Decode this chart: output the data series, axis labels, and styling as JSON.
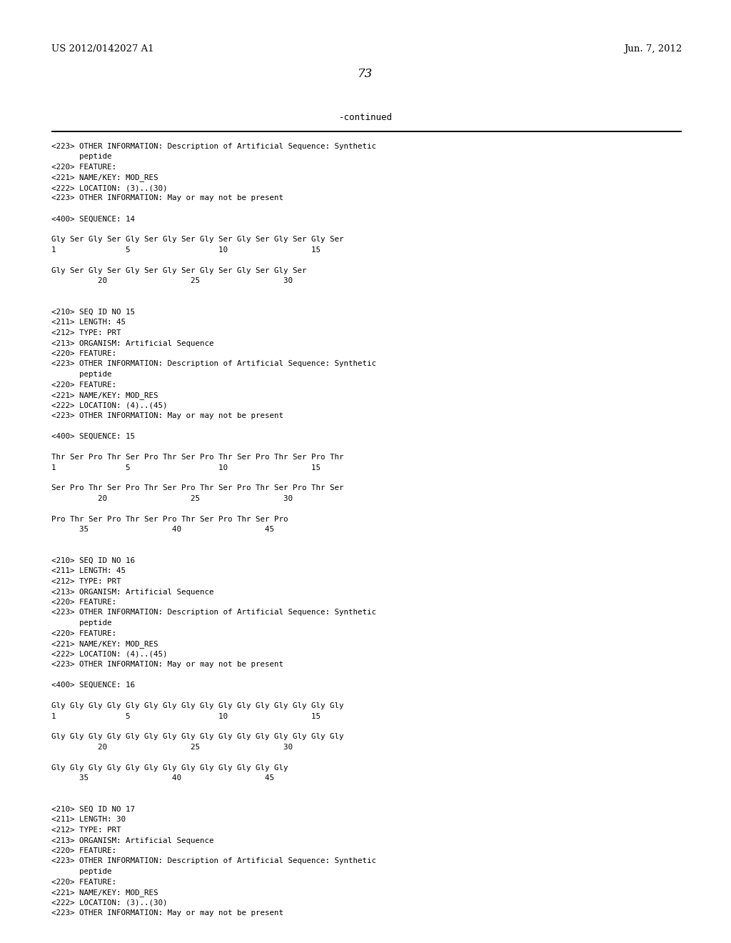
{
  "header_left": "US 2012/0142027 A1",
  "header_right": "Jun. 7, 2012",
  "page_number": "73",
  "continued_label": "-continued",
  "background_color": "#ffffff",
  "text_color": "#000000",
  "font_size": 7.8,
  "header_font_size": 9.5,
  "page_num_font_size": 12,
  "continued_font_size": 9,
  "lines": [
    "<223> OTHER INFORMATION: Description of Artificial Sequence: Synthetic",
    "      peptide",
    "<220> FEATURE:",
    "<221> NAME/KEY: MOD_RES",
    "<222> LOCATION: (3)..(30)",
    "<223> OTHER INFORMATION: May or may not be present",
    "",
    "<400> SEQUENCE: 14",
    "",
    "Gly Ser Gly Ser Gly Ser Gly Ser Gly Ser Gly Ser Gly Ser Gly Ser",
    "1               5                   10                  15",
    "",
    "Gly Ser Gly Ser Gly Ser Gly Ser Gly Ser Gly Ser Gly Ser",
    "          20                  25                  30",
    "",
    "",
    "<210> SEQ ID NO 15",
    "<211> LENGTH: 45",
    "<212> TYPE: PRT",
    "<213> ORGANISM: Artificial Sequence",
    "<220> FEATURE:",
    "<223> OTHER INFORMATION: Description of Artificial Sequence: Synthetic",
    "      peptide",
    "<220> FEATURE:",
    "<221> NAME/KEY: MOD_RES",
    "<222> LOCATION: (4)..(45)",
    "<223> OTHER INFORMATION: May or may not be present",
    "",
    "<400> SEQUENCE: 15",
    "",
    "Thr Ser Pro Thr Ser Pro Thr Ser Pro Thr Ser Pro Thr Ser Pro Thr",
    "1               5                   10                  15",
    "",
    "Ser Pro Thr Ser Pro Thr Ser Pro Thr Ser Pro Thr Ser Pro Thr Ser",
    "          20                  25                  30",
    "",
    "Pro Thr Ser Pro Thr Ser Pro Thr Ser Pro Thr Ser Pro",
    "      35                  40                  45",
    "",
    "",
    "<210> SEQ ID NO 16",
    "<211> LENGTH: 45",
    "<212> TYPE: PRT",
    "<213> ORGANISM: Artificial Sequence",
    "<220> FEATURE:",
    "<223> OTHER INFORMATION: Description of Artificial Sequence: Synthetic",
    "      peptide",
    "<220> FEATURE:",
    "<221> NAME/KEY: MOD_RES",
    "<222> LOCATION: (4)..(45)",
    "<223> OTHER INFORMATION: May or may not be present",
    "",
    "<400> SEQUENCE: 16",
    "",
    "Gly Gly Gly Gly Gly Gly Gly Gly Gly Gly Gly Gly Gly Gly Gly Gly",
    "1               5                   10                  15",
    "",
    "Gly Gly Gly Gly Gly Gly Gly Gly Gly Gly Gly Gly Gly Gly Gly Gly",
    "          20                  25                  30",
    "",
    "Gly Gly Gly Gly Gly Gly Gly Gly Gly Gly Gly Gly Gly",
    "      35                  40                  45",
    "",
    "",
    "<210> SEQ ID NO 17",
    "<211> LENGTH: 30",
    "<212> TYPE: PRT",
    "<213> ORGANISM: Artificial Sequence",
    "<220> FEATURE:",
    "<223> OTHER INFORMATION: Description of Artificial Sequence: Synthetic",
    "      peptide",
    "<220> FEATURE:",
    "<221> NAME/KEY: MOD_RES",
    "<222> LOCATION: (3)..(30)",
    "<223> OTHER INFORMATION: May or may not be present"
  ]
}
